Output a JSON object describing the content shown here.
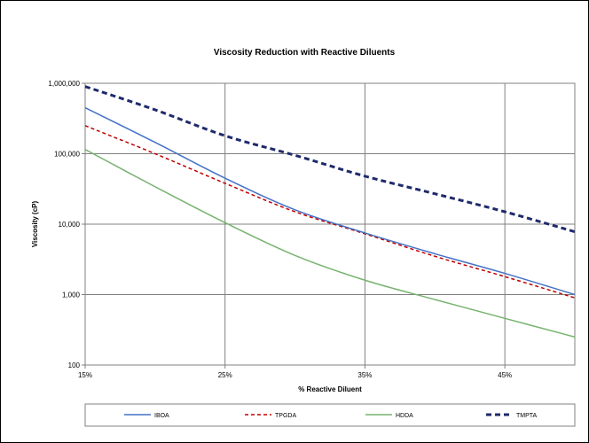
{
  "chart_data": {
    "type": "line",
    "title": "Viscosity Reduction with Reactive Diluents",
    "xlabel": "% Reactive Diluent",
    "ylabel": "Viscosity (cP)",
    "x_domain": [
      15,
      50
    ],
    "xticks": [
      {
        "value": 15,
        "label": "15%"
      },
      {
        "value": 25,
        "label": "25%"
      },
      {
        "value": 35,
        "label": "35%"
      },
      {
        "value": 45,
        "label": "45%"
      }
    ],
    "y_scale": "log",
    "ylim": [
      100,
      1000000
    ],
    "yticks": [
      {
        "value": 100,
        "label": "100"
      },
      {
        "value": 1000,
        "label": "1,000"
      },
      {
        "value": 10000,
        "label": "10,000"
      },
      {
        "value": 100000,
        "label": "100,000"
      },
      {
        "value": 1000000,
        "label": "1,000,000"
      }
    ],
    "grid": true,
    "legend_position": "bottom",
    "series": [
      {
        "name": "IBOA",
        "color": "#4472C4",
        "dash": "solid",
        "x": [
          15,
          20,
          25,
          30,
          35,
          40,
          45,
          50
        ],
        "values": [
          450000,
          145000,
          45000,
          16000,
          7500,
          3800,
          2000,
          1000
        ]
      },
      {
        "name": "TPGDA",
        "color": "#C00000",
        "dash": "dashed",
        "x": [
          15,
          20,
          25,
          30,
          35,
          40,
          45,
          50
        ],
        "values": [
          250000,
          100000,
          38000,
          15000,
          7300,
          3500,
          1800,
          900
        ]
      },
      {
        "name": "HDDA",
        "color": "#77B36F",
        "dash": "solid",
        "x": [
          15,
          20,
          25,
          30,
          35,
          40,
          45,
          50
        ],
        "values": [
          115000,
          34000,
          10500,
          3600,
          1600,
          850,
          460,
          250
        ]
      },
      {
        "name": "TMPTA",
        "color": "#1F2A6B",
        "dash": "bold-dashed",
        "x": [
          15,
          20,
          25,
          30,
          35,
          40,
          45,
          50
        ],
        "values": [
          900000,
          420000,
          180000,
          95000,
          48000,
          27000,
          15000,
          7800
        ]
      }
    ]
  }
}
